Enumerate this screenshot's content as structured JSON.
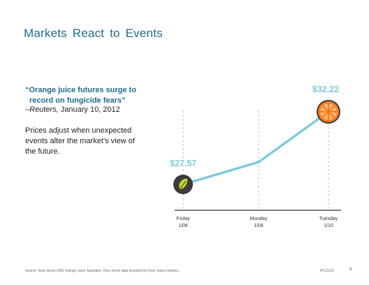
{
  "slide": {
    "title": "Markets  React  to  Events",
    "quote_line1": "“Orange juice futures surge to",
    "quote_line2": "record on fungicide fears”",
    "attribution_prefix": "–",
    "attribution_source": "Reuters,",
    "attribution_date": " January 10, 2012",
    "body": "Prices adjust when unexpected events alter the market’s view of the future.",
    "footer_source": "Source: Dow Jones-UBS Orange Juice Subindex. Dow Jones data provided by Dow Jones Indexes.",
    "footer_code": "IPC2123",
    "page_number": "6"
  },
  "chart_data": {
    "type": "line",
    "categories": [
      "Friday\n1/06",
      "Monday\n1/09",
      "Tuesday\n1/10"
    ],
    "values": [
      27.57,
      29.0,
      32.22
    ],
    "ylim": [
      26.5,
      33.3
    ],
    "data_labels": [
      {
        "index": 0,
        "text": "$27.57"
      },
      {
        "index": 2,
        "text": "$32.22"
      }
    ],
    "markers": [
      {
        "index": 0,
        "icon": "leaf-icon"
      },
      {
        "index": 2,
        "icon": "orange-slice-icon"
      }
    ],
    "colors": {
      "line": "#7ecbdb",
      "label": "#7ecbdb",
      "axis": "#333333",
      "gridline": "#bbbbbb",
      "orange": "#f37a1f",
      "leaf_bg": "#3b3b3b",
      "leaf": "#c7d530"
    },
    "grid": "vertical-dashed"
  }
}
